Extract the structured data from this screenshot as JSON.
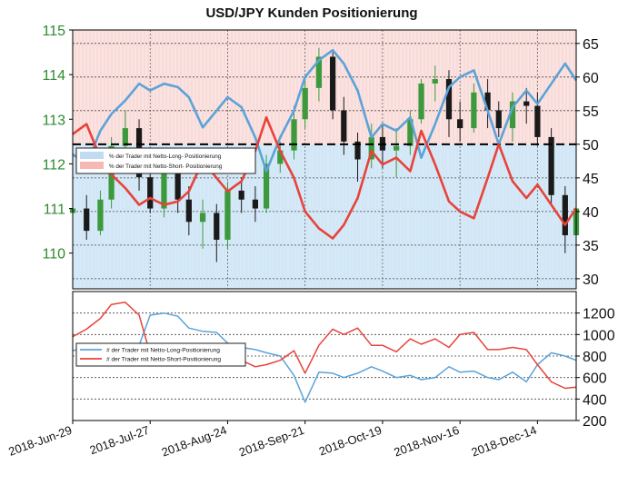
{
  "title": "USD/JPY Kunden Positionierung",
  "colors": {
    "long": "#5ba3d9",
    "short": "#e8433a",
    "long_fill": "#d6e9f7",
    "short_fill": "#fbe3e1",
    "price_axis": "#2e8b2e",
    "candle_up": "#3c9a3c",
    "candle_down": "#1a1a1a"
  },
  "chart_data": [
    {
      "type": "line",
      "panel": "top",
      "left_axis": {
        "label": "",
        "ticks": [
          110,
          111,
          112,
          113,
          114,
          115
        ],
        "range": [
          109.2,
          115.0
        ]
      },
      "right_axis": {
        "label": "",
        "ticks": [
          30,
          35,
          40,
          45,
          50,
          55,
          60,
          65
        ],
        "range": [
          28.5,
          67.0
        ]
      },
      "reference_line": 50,
      "legend": {
        "placement": "left",
        "entries": [
          "% der Trader mit Netto-Long- Positionierung",
          "% der Trader mit Netto-Short- Positionierung"
        ]
      },
      "x_dates": [
        "2018-06-29",
        "2018-07-04",
        "2018-07-09",
        "2018-07-13",
        "2018-07-18",
        "2018-07-23",
        "2018-07-27",
        "2018-08-01",
        "2018-08-06",
        "2018-08-10",
        "2018-08-15",
        "2018-08-20",
        "2018-08-24",
        "2018-08-29",
        "2018-09-03",
        "2018-09-07",
        "2018-09-12",
        "2018-09-17",
        "2018-09-21",
        "2018-09-26",
        "2018-10-01",
        "2018-10-05",
        "2018-10-10",
        "2018-10-15",
        "2018-10-19",
        "2018-10-24",
        "2018-10-29",
        "2018-11-02",
        "2018-11-07",
        "2018-11-12",
        "2018-11-16",
        "2018-11-21",
        "2018-11-26",
        "2018-11-30",
        "2018-12-05",
        "2018-12-10",
        "2018-12-14",
        "2018-12-19",
        "2018-12-24",
        "2018-12-28"
      ],
      "series": [
        {
          "name": "% der Trader mit Netto-Long- Positionierung",
          "axis": "right",
          "values": [
            48.5,
            47.0,
            52.0,
            54.5,
            56.5,
            59.0,
            58.0,
            59.0,
            58.5,
            57.0,
            52.5,
            55.0,
            57.0,
            55.5,
            51.0,
            46.0,
            51.0,
            55.0,
            60.0,
            62.5,
            64.0,
            62.0,
            58.0,
            51.0,
            53.0,
            52.0,
            54.0,
            48.0,
            53.0,
            58.5,
            60.0,
            61.0,
            55.0,
            50.0,
            55.5,
            58.0,
            56.0,
            59.0,
            62.0,
            59.5
          ]
        },
        {
          "name": "% der Trader mit Netto-Short- Positionierung",
          "axis": "right",
          "values": [
            51.5,
            53.0,
            48.0,
            45.5,
            43.5,
            41.0,
            42.0,
            41.0,
            41.5,
            43.0,
            47.5,
            45.0,
            43.0,
            44.5,
            49.0,
            54.0,
            49.0,
            45.0,
            40.0,
            37.5,
            36.0,
            38.0,
            42.0,
            49.0,
            47.0,
            48.0,
            46.0,
            52.0,
            47.0,
            41.5,
            40.0,
            39.0,
            45.0,
            50.0,
            44.5,
            42.0,
            44.0,
            41.0,
            38.0,
            40.5
          ]
        }
      ],
      "ohlc": [
        [
          110.9,
          111.2,
          110.6,
          111.0
        ],
        [
          111.0,
          111.3,
          110.3,
          110.5
        ],
        [
          110.5,
          111.4,
          110.4,
          111.2
        ],
        [
          111.2,
          112.6,
          111.0,
          112.4
        ],
        [
          112.4,
          113.2,
          112.2,
          112.8
        ],
        [
          112.8,
          113.0,
          111.4,
          111.7
        ],
        [
          111.7,
          111.9,
          110.9,
          111.0
        ],
        [
          111.0,
          112.0,
          110.8,
          111.9
        ],
        [
          111.9,
          112.1,
          110.9,
          111.2
        ],
        [
          111.2,
          111.5,
          110.4,
          110.7
        ],
        [
          110.7,
          111.2,
          110.1,
          110.9
        ],
        [
          110.9,
          111.1,
          109.8,
          110.3
        ],
        [
          110.3,
          111.6,
          110.1,
          111.4
        ],
        [
          111.4,
          111.7,
          110.9,
          111.2
        ],
        [
          111.2,
          111.5,
          110.7,
          111.0
        ],
        [
          111.0,
          112.2,
          110.9,
          112.0
        ],
        [
          112.0,
          112.5,
          111.8,
          112.3
        ],
        [
          112.3,
          113.3,
          112.1,
          113.0
        ],
        [
          113.0,
          113.9,
          112.8,
          113.7
        ],
        [
          113.7,
          114.6,
          113.4,
          114.4
        ],
        [
          114.4,
          114.5,
          113.0,
          113.2
        ],
        [
          113.2,
          113.5,
          112.2,
          112.5
        ],
        [
          112.5,
          112.7,
          111.6,
          112.1
        ],
        [
          112.1,
          112.9,
          111.9,
          112.6
        ],
        [
          112.6,
          112.9,
          111.9,
          112.3
        ],
        [
          112.3,
          112.8,
          111.7,
          112.4
        ],
        [
          112.4,
          113.2,
          112.2,
          113.0
        ],
        [
          113.0,
          113.9,
          112.9,
          113.8
        ],
        [
          113.8,
          114.2,
          113.4,
          113.9
        ],
        [
          113.9,
          114.1,
          112.6,
          113.0
        ],
        [
          113.0,
          113.4,
          112.5,
          112.8
        ],
        [
          112.8,
          113.8,
          112.7,
          113.6
        ],
        [
          113.6,
          113.9,
          112.8,
          113.2
        ],
        [
          113.2,
          113.4,
          112.6,
          112.8
        ],
        [
          112.8,
          113.6,
          112.5,
          113.4
        ],
        [
          113.4,
          113.7,
          112.9,
          113.3
        ],
        [
          113.3,
          113.6,
          112.4,
          112.6
        ],
        [
          112.6,
          112.8,
          111.1,
          111.3
        ],
        [
          111.3,
          111.5,
          110.0,
          110.4
        ],
        [
          110.4,
          111.3,
          110.3,
          111.0
        ]
      ]
    },
    {
      "type": "line",
      "panel": "bottom",
      "right_axis": {
        "label": "",
        "ticks": [
          200,
          400,
          600,
          800,
          1000,
          1200
        ],
        "range": [
          200,
          1400
        ]
      },
      "legend": {
        "placement": "left",
        "entries": [
          "# der Trader mit Netto-Long-Positionierung",
          "# der Trader mit Netto-Short-Positionierung"
        ]
      },
      "x_dates": [
        "2018-06-29",
        "2018-07-04",
        "2018-07-09",
        "2018-07-13",
        "2018-07-18",
        "2018-07-23",
        "2018-07-27",
        "2018-08-01",
        "2018-08-06",
        "2018-08-10",
        "2018-08-15",
        "2018-08-20",
        "2018-08-24",
        "2018-08-29",
        "2018-09-03",
        "2018-09-07",
        "2018-09-12",
        "2018-09-17",
        "2018-09-21",
        "2018-09-26",
        "2018-10-01",
        "2018-10-05",
        "2018-10-10",
        "2018-10-15",
        "2018-10-19",
        "2018-10-24",
        "2018-10-29",
        "2018-11-02",
        "2018-11-07",
        "2018-11-12",
        "2018-11-16",
        "2018-11-21",
        "2018-11-26",
        "2018-11-30",
        "2018-12-05",
        "2018-12-10",
        "2018-12-14",
        "2018-12-19",
        "2018-12-24",
        "2018-12-28"
      ],
      "series": [
        {
          "name": "# der Trader mit Netto-Long-Positionierung",
          "values": [
            850,
            880,
            830,
            870,
            840,
            900,
            1180,
            1200,
            1170,
            1060,
            1030,
            1020,
            920,
            880,
            860,
            830,
            800,
            620,
            370,
            650,
            640,
            600,
            640,
            700,
            660,
            600,
            620,
            580,
            600,
            700,
            650,
            660,
            600,
            580,
            650,
            560,
            720,
            830,
            800,
            760
          ]
        },
        {
          "name": "# der Trader mit Netto-Short-Positionierung",
          "values": [
            980,
            1050,
            1150,
            1280,
            1300,
            1180,
            820,
            830,
            800,
            780,
            860,
            840,
            740,
            760,
            700,
            720,
            760,
            850,
            640,
            900,
            1050,
            1000,
            1060,
            900,
            900,
            840,
            960,
            910,
            960,
            880,
            1000,
            1020,
            860,
            860,
            880,
            860,
            720,
            560,
            500,
            510
          ]
        }
      ]
    }
  ],
  "x_axis": {
    "tick_labels": [
      "2018-Jun-29",
      "2018-Jul-27",
      "2018-Aug-24",
      "2018-Sep-21",
      "2018-Oct-19",
      "2018-Nov-16",
      "2018-Dec-14"
    ]
  }
}
